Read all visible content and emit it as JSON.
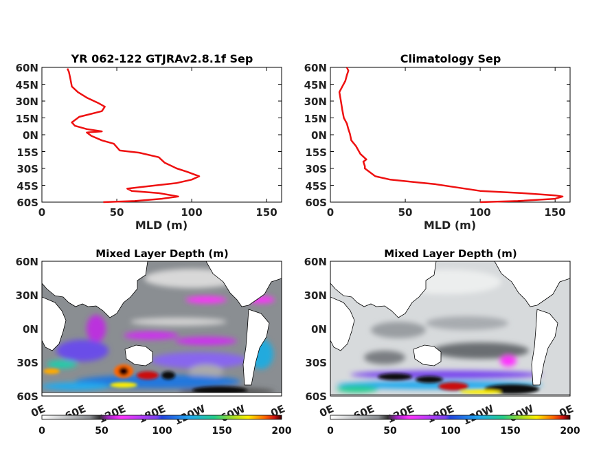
{
  "chart_data": [
    {
      "type": "line",
      "title": "YR 062-122 GTJRAv2.8.1f Sep",
      "xlabel": "MLD (m)",
      "ylabel": "",
      "xlim": [
        0,
        160
      ],
      "ylim": [
        -60,
        60
      ],
      "x_ticks": [
        "0",
        "50",
        "100",
        "150"
      ],
      "y_ticks": [
        "60N",
        "45N",
        "30N",
        "15N",
        "0N",
        "15S",
        "30S",
        "45S",
        "60S"
      ],
      "line_color": "#ee1111",
      "series": [
        {
          "points": [
            [
              41,
              -60
            ],
            [
              62,
              -59
            ],
            [
              80,
              -57
            ],
            [
              91,
              -55
            ],
            [
              78,
              -52
            ],
            [
              60,
              -50
            ],
            [
              57,
              -48
            ],
            [
              70,
              -46
            ],
            [
              90,
              -43
            ],
            [
              100,
              -40
            ],
            [
              105,
              -37
            ],
            [
              101,
              -35
            ],
            [
              97,
              -33
            ],
            [
              90,
              -30
            ],
            [
              82,
              -25
            ],
            [
              78,
              -20
            ],
            [
              65,
              -16
            ],
            [
              52,
              -14
            ],
            [
              48,
              -8
            ],
            [
              40,
              -5
            ],
            [
              33,
              -1
            ],
            [
              30,
              2
            ],
            [
              40,
              3
            ],
            [
              30,
              5
            ],
            [
              22,
              8
            ],
            [
              20,
              11
            ],
            [
              25,
              16
            ],
            [
              40,
              21
            ],
            [
              42,
              25
            ],
            [
              38,
              28
            ],
            [
              30,
              33
            ],
            [
              24,
              38
            ],
            [
              20,
              43
            ],
            [
              19,
              50
            ],
            [
              18,
              56
            ],
            [
              17,
              59
            ]
          ]
        }
      ]
    },
    {
      "type": "line",
      "title": "Climatology Sep",
      "xlabel": "MLD (m)",
      "ylabel": "",
      "xlim": [
        0,
        160
      ],
      "ylim": [
        -60,
        60
      ],
      "x_ticks": [
        "0",
        "50",
        "100",
        "150"
      ],
      "y_ticks": [
        "60N",
        "45N",
        "30N",
        "15N",
        "0N",
        "15S",
        "30S",
        "45S",
        "60S"
      ],
      "line_color": "#ee1111",
      "series": [
        {
          "points": [
            [
              100,
              -60
            ],
            [
              125,
              -59
            ],
            [
              150,
              -57
            ],
            [
              155,
              -55
            ],
            [
              150,
              -54
            ],
            [
              128,
              -52
            ],
            [
              100,
              -50
            ],
            [
              85,
              -47
            ],
            [
              70,
              -44
            ],
            [
              55,
              -42
            ],
            [
              40,
              -40
            ],
            [
              30,
              -37
            ],
            [
              26,
              -33
            ],
            [
              23,
              -30
            ],
            [
              23,
              -28
            ],
            [
              22,
              -24
            ],
            [
              24,
              -22
            ],
            [
              20,
              -17
            ],
            [
              17,
              -10
            ],
            [
              14,
              -5
            ],
            [
              13,
              1
            ],
            [
              12,
              5
            ],
            [
              11,
              10
            ],
            [
              9,
              15
            ],
            [
              8,
              22
            ],
            [
              7,
              30
            ],
            [
              6,
              38
            ],
            [
              8,
              43
            ],
            [
              10,
              48
            ],
            [
              11,
              53
            ],
            [
              12,
              57
            ],
            [
              11,
              60
            ]
          ]
        }
      ]
    },
    {
      "type": "heatmap",
      "title": "Mixed Layer Depth (m)",
      "x_ticks": [
        "0E",
        "60E",
        "120E",
        "180E",
        "120W",
        "60W",
        "0E"
      ],
      "y_ticks": [
        "60N",
        "30N",
        "0N",
        "30S",
        "60S"
      ],
      "colorbar_ticks": [
        "0",
        "50",
        "100",
        "150",
        "200"
      ],
      "colorbar_range": [
        0,
        200
      ]
    },
    {
      "type": "heatmap",
      "title": "Mixed Layer Depth (m)",
      "x_ticks": [
        "0E",
        "60E",
        "120E",
        "180E",
        "120W",
        "60W",
        "0E"
      ],
      "y_ticks": [
        "60N",
        "30N",
        "0N",
        "30S",
        "60S"
      ],
      "colorbar_ticks": [
        "0",
        "50",
        "100",
        "150",
        "200"
      ],
      "colorbar_range": [
        0,
        200
      ]
    }
  ]
}
